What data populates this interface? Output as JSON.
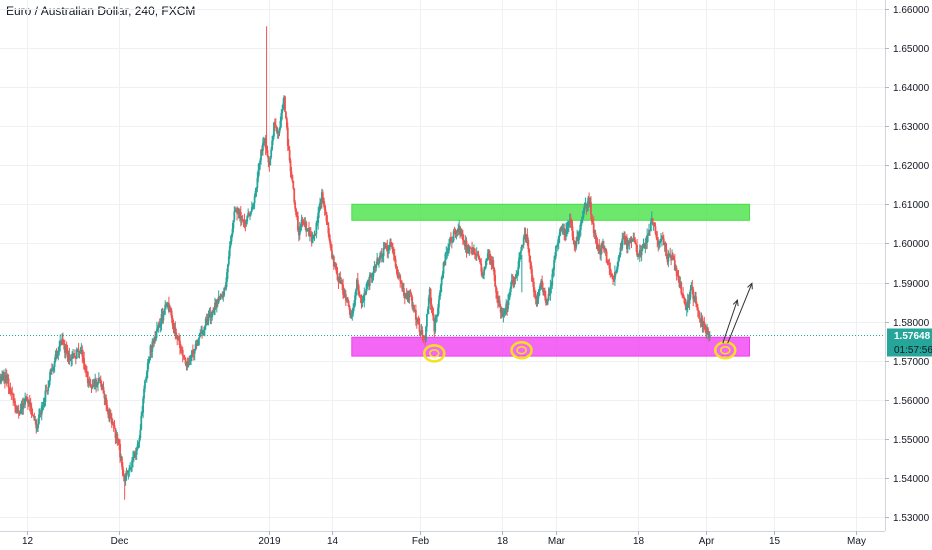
{
  "symbol_title": "Euro / Australian Dollar, 240, FXCM",
  "chart_data": {
    "type": "candlestick",
    "title": "Euro / Australian Dollar, 240, FXCM",
    "y_axis": {
      "position": "right",
      "range": [
        1.5265,
        1.6622
      ],
      "ticks": [
        "1.53000",
        "1.54000",
        "1.55000",
        "1.56000",
        "1.57000",
        "1.58000",
        "1.59000",
        "1.60000",
        "1.61000",
        "1.62000",
        "1.63000",
        "1.64000",
        "1.65000",
        "1.66000"
      ]
    },
    "x_axis": {
      "ticks": [
        "12",
        "Dec",
        "2019",
        "14",
        "Feb",
        "18",
        "Mar",
        "18",
        "Apr",
        "15",
        "May"
      ],
      "tick_days": [
        -19,
        0,
        31,
        44,
        62,
        79,
        90,
        107,
        121,
        135,
        152
      ]
    },
    "grid": true,
    "current_price": {
      "label": "1.57648",
      "value": 1.57648,
      "color": "#26a69a"
    },
    "countdown": {
      "label": "01:57:56",
      "color": "#131722"
    },
    "colors": {
      "up": "#26a69a",
      "down": "#ef5350",
      "support_zone": "#f13cf1",
      "resistance_zone": "#44e144",
      "marker": "#f5e21a",
      "arrow": "#333333"
    },
    "resistance_zone": {
      "price_low": 1.6059,
      "price_high": 1.61,
      "from_day": 48,
      "to_day": 130
    },
    "support_zone": {
      "price_low": 1.5712,
      "price_high": 1.576,
      "from_day": 48,
      "to_day": 130
    },
    "bottom_markers": [
      {
        "day": 65,
        "price": 1.5719
      },
      {
        "day": 83,
        "price": 1.5727
      },
      {
        "day": 125,
        "price": 1.5727
      }
    ],
    "projection_arrows": [
      {
        "from": [
          124.5,
          1.5745
        ],
        "to": [
          127.5,
          1.5855
        ]
      },
      {
        "from": [
          125.5,
          1.5745
        ],
        "to": [
          130.5,
          1.5898
        ]
      }
    ],
    "price_path": [
      [
        -26,
        1.566
      ],
      [
        -23,
        1.565
      ],
      [
        -21,
        1.556
      ],
      [
        -19,
        1.561
      ],
      [
        -17,
        1.553
      ],
      [
        -14,
        1.567
      ],
      [
        -12,
        1.575
      ],
      [
        -10,
        1.57
      ],
      [
        -8,
        1.573
      ],
      [
        -6,
        1.563
      ],
      [
        -4,
        1.565
      ],
      [
        -2,
        1.556
      ],
      [
        0,
        1.548
      ],
      [
        1,
        1.54
      ],
      [
        2,
        1.542
      ],
      [
        4,
        1.548
      ],
      [
        5,
        1.56
      ],
      [
        6,
        1.571
      ],
      [
        8,
        1.578
      ],
      [
        10,
        1.585
      ],
      [
        12,
        1.576
      ],
      [
        14,
        1.569
      ],
      [
        16,
        1.574
      ],
      [
        18,
        1.58
      ],
      [
        20,
        1.584
      ],
      [
        22,
        1.589
      ],
      [
        23,
        1.6
      ],
      [
        24,
        1.609
      ],
      [
        26,
        1.605
      ],
      [
        28,
        1.612
      ],
      [
        29,
        1.621
      ],
      [
        30,
        1.627
      ],
      [
        31,
        1.62
      ],
      [
        32,
        1.631
      ],
      [
        33,
        1.628
      ],
      [
        34,
        1.638
      ],
      [
        35,
        1.623
      ],
      [
        36,
        1.613
      ],
      [
        37,
        1.603
      ],
      [
        38,
        1.606
      ],
      [
        40,
        1.6
      ],
      [
        41,
        1.607
      ],
      [
        42,
        1.613
      ],
      [
        43,
        1.604
      ],
      [
        44,
        1.596
      ],
      [
        45,
        1.592
      ],
      [
        47,
        1.585
      ],
      [
        48,
        1.581
      ],
      [
        49,
        1.59
      ],
      [
        50,
        1.585
      ],
      [
        52,
        1.592
      ],
      [
        54,
        1.597
      ],
      [
        56,
        1.6
      ],
      [
        57,
        1.594
      ],
      [
        59,
        1.586
      ],
      [
        60,
        1.587
      ],
      [
        62,
        1.578
      ],
      [
        63,
        1.575
      ],
      [
        64,
        1.588
      ],
      [
        65,
        1.578
      ],
      [
        66,
        1.586
      ],
      [
        67,
        1.595
      ],
      [
        68,
        1.6
      ],
      [
        70,
        1.604
      ],
      [
        72,
        1.598
      ],
      [
        74,
        1.597
      ],
      [
        75,
        1.592
      ],
      [
        76,
        1.598
      ],
      [
        77,
        1.595
      ],
      [
        78,
        1.586
      ],
      [
        79,
        1.582
      ],
      [
        80,
        1.584
      ],
      [
        81,
        1.59
      ],
      [
        82,
        1.592
      ],
      [
        83,
        1.6
      ],
      [
        84,
        1.602
      ],
      [
        85,
        1.592
      ],
      [
        86,
        1.585
      ],
      [
        87,
        1.59
      ],
      [
        88,
        1.585
      ],
      [
        89,
        1.588
      ],
      [
        90,
        1.598
      ],
      [
        91,
        1.604
      ],
      [
        92,
        1.602
      ],
      [
        93,
        1.607
      ],
      [
        94,
        1.598
      ],
      [
        95,
        1.604
      ],
      [
        96,
        1.609
      ],
      [
        97,
        1.611
      ],
      [
        98,
        1.602
      ],
      [
        99,
        1.598
      ],
      [
        100,
        1.599
      ],
      [
        101,
        1.594
      ],
      [
        102,
        1.59
      ],
      [
        103,
        1.597
      ],
      [
        104,
        1.601
      ],
      [
        105,
        1.599
      ],
      [
        106,
        1.602
      ],
      [
        107,
        1.597
      ],
      [
        108,
        1.599
      ],
      [
        109,
        1.602
      ],
      [
        110,
        1.606
      ],
      [
        111,
        1.6
      ],
      [
        112,
        1.602
      ],
      [
        113,
        1.596
      ],
      [
        114,
        1.597
      ],
      [
        115,
        1.592
      ],
      [
        116,
        1.588
      ],
      [
        117,
        1.583
      ],
      [
        118,
        1.588
      ],
      [
        119,
        1.585
      ],
      [
        120,
        1.58
      ],
      [
        121,
        1.578
      ],
      [
        122,
        1.5764
      ]
    ]
  }
}
